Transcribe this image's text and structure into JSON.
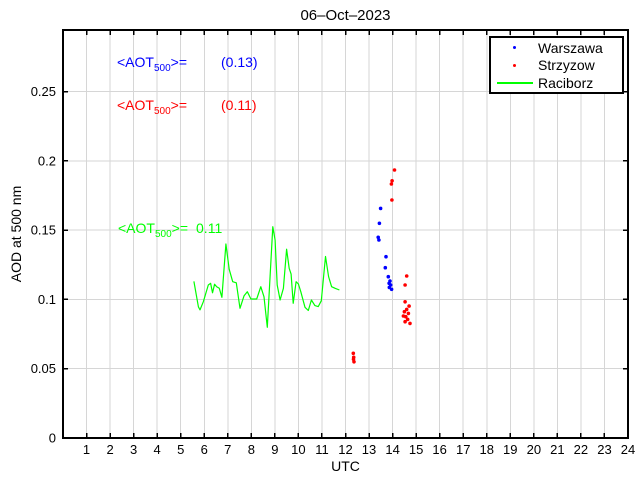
{
  "chart_data": {
    "type": "scatter",
    "title": "06–Oct–2023",
    "xlabel": "UTC",
    "ylabel": "AOD at 500 nm",
    "xlim": [
      0,
      24
    ],
    "ylim": [
      0,
      0.2944
    ],
    "grid": true,
    "grid_color": "#d6d6d6",
    "axis_color": "#000000",
    "xticks": [
      "1",
      "2",
      "3",
      "4",
      "5",
      "6",
      "7",
      "8",
      "9",
      "10",
      "11",
      "12",
      "13",
      "14",
      "15",
      "16",
      "17",
      "18",
      "19",
      "20",
      "21",
      "22",
      "23",
      "24"
    ],
    "yticks": [
      "0",
      "0.05",
      "0.1",
      "0.15",
      "0.2",
      "0.25"
    ],
    "legend_position": "top-right",
    "series": [
      {
        "name": "Warszawa",
        "type": "scatter",
        "color": "#0000ff",
        "points": [
          [
            13.49,
            0.1657
          ],
          [
            13.44,
            0.1549
          ],
          [
            13.39,
            0.1448
          ],
          [
            13.42,
            0.1429
          ],
          [
            13.72,
            0.1308
          ],
          [
            13.69,
            0.1229
          ],
          [
            13.82,
            0.1164
          ],
          [
            13.89,
            0.1133
          ],
          [
            13.85,
            0.1116
          ],
          [
            13.92,
            0.1104
          ],
          [
            13.86,
            0.1087
          ],
          [
            13.96,
            0.1073
          ]
        ]
      },
      {
        "name": "Strzyzow",
        "type": "scatter",
        "color": "#ff0000",
        "points": [
          [
            12.33,
            0.0611
          ],
          [
            12.35,
            0.0582
          ],
          [
            12.34,
            0.0568
          ],
          [
            12.36,
            0.055
          ],
          [
            14.08,
            0.1934
          ],
          [
            13.98,
            0.1856
          ],
          [
            13.95,
            0.1833
          ],
          [
            13.97,
            0.1717
          ],
          [
            14.6,
            0.1169
          ],
          [
            14.53,
            0.1104
          ],
          [
            14.53,
            0.0983
          ],
          [
            14.7,
            0.0952
          ],
          [
            14.6,
            0.0928
          ],
          [
            14.5,
            0.0911
          ],
          [
            14.67,
            0.0899
          ],
          [
            14.56,
            0.0875
          ],
          [
            14.46,
            0.088
          ],
          [
            14.64,
            0.0856
          ],
          [
            14.53,
            0.0839
          ],
          [
            14.74,
            0.0827
          ]
        ]
      },
      {
        "name": "Raciborz",
        "type": "line",
        "color": "#00ff00",
        "points": [
          [
            5.56,
            0.113
          ],
          [
            5.75,
            0.0947
          ],
          [
            5.82,
            0.0924
          ],
          [
            5.96,
            0.0983
          ],
          [
            6.17,
            0.1104
          ],
          [
            6.27,
            0.1116
          ],
          [
            6.35,
            0.1048
          ],
          [
            6.44,
            0.111
          ],
          [
            6.53,
            0.1092
          ],
          [
            6.64,
            0.108
          ],
          [
            6.75,
            0.1015
          ],
          [
            6.92,
            0.14
          ],
          [
            7.06,
            0.1217
          ],
          [
            7.21,
            0.1128
          ],
          [
            7.36,
            0.112
          ],
          [
            7.52,
            0.0936
          ],
          [
            7.69,
            0.1025
          ],
          [
            7.83,
            0.1056
          ],
          [
            7.98,
            0.1003
          ],
          [
            8.23,
            0.1003
          ],
          [
            8.4,
            0.1092
          ],
          [
            8.54,
            0.1019
          ],
          [
            8.68,
            0.0799
          ],
          [
            8.91,
            0.1525
          ],
          [
            9.01,
            0.1429
          ],
          [
            9.1,
            0.1104
          ],
          [
            9.22,
            0.0996
          ],
          [
            9.36,
            0.108
          ],
          [
            9.5,
            0.1362
          ],
          [
            9.61,
            0.1224
          ],
          [
            9.69,
            0.1183
          ],
          [
            9.78,
            0.0972
          ],
          [
            9.9,
            0.1128
          ],
          [
            10.0,
            0.1111
          ],
          [
            10.1,
            0.1056
          ],
          [
            10.28,
            0.0943
          ],
          [
            10.42,
            0.092
          ],
          [
            10.55,
            0.0996
          ],
          [
            10.7,
            0.0955
          ],
          [
            10.84,
            0.0948
          ],
          [
            10.97,
            0.099
          ],
          [
            11.15,
            0.131
          ],
          [
            11.28,
            0.1164
          ],
          [
            11.41,
            0.1092
          ],
          [
            11.56,
            0.108
          ],
          [
            11.74,
            0.1068
          ]
        ]
      }
    ],
    "annotations": [
      {
        "prefix": "<AOT",
        "sub": "500",
        "suffix": ">=",
        "value": "(0.13)",
        "color": "#0000ff"
      },
      {
        "prefix": "<AOT",
        "sub": "500",
        "suffix": ">=",
        "value": "(0.11)",
        "color": "#ff0000"
      },
      {
        "prefix": "<AOT",
        "sub": "500",
        "suffix": ">=",
        "value": "0.11",
        "color": "#00ff00"
      }
    ]
  },
  "legend": {
    "items": [
      {
        "label": "Warszawa",
        "color": "#0000ff",
        "marker": "dot"
      },
      {
        "label": "Strzyzow",
        "color": "#ff0000",
        "marker": "dot"
      },
      {
        "label": "Raciborz",
        "color": "#00ff00",
        "marker": "line"
      }
    ]
  }
}
